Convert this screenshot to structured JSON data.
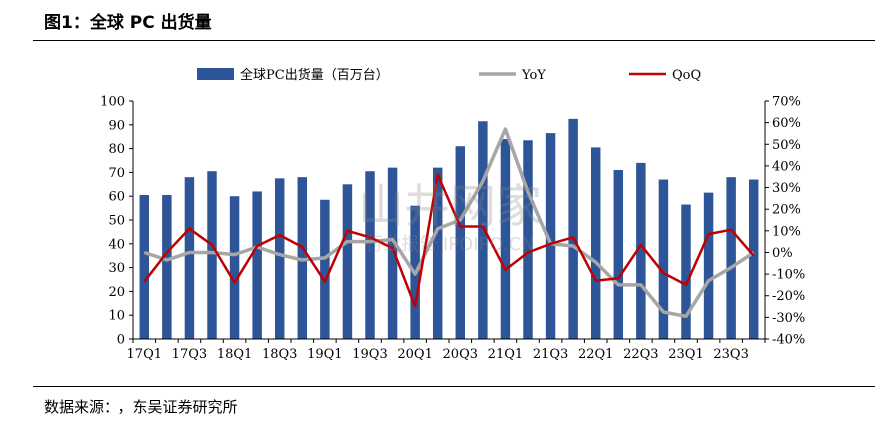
{
  "header": {
    "title": "图1：全球 PC 出货量"
  },
  "source": {
    "label": "数据来源：",
    "org": "，东吴证券研究所"
  },
  "watermark": {
    "main": "山井网家",
    "sub": "行业报告 IPOIPO.CN"
  },
  "colors": {
    "bar": "#2e5597",
    "yoy": "#a6a6a6",
    "qoq": "#c00000"
  },
  "chart_data": {
    "type": "bar",
    "categories": [
      "17Q1",
      "17Q2",
      "17Q3",
      "17Q4",
      "18Q1",
      "18Q2",
      "18Q3",
      "18Q4",
      "19Q1",
      "19Q2",
      "19Q3",
      "19Q4",
      "20Q1",
      "20Q2",
      "20Q3",
      "20Q4",
      "21Q1",
      "21Q2",
      "21Q3",
      "21Q4",
      "22Q1",
      "22Q2",
      "22Q3",
      "22Q4",
      "23Q1",
      "23Q2",
      "23Q3",
      "23Q4"
    ],
    "x_tick_labels": [
      "17Q1",
      "17Q3",
      "18Q1",
      "18Q3",
      "19Q1",
      "19Q3",
      "20Q1",
      "20Q3",
      "21Q1",
      "21Q3",
      "22Q1",
      "22Q3",
      "23Q1",
      "23Q3"
    ],
    "series": [
      {
        "name": "全球PC出货量（百万台）",
        "type": "bar",
        "axis": "left",
        "values": [
          60.5,
          60.5,
          68,
          70.5,
          60,
          62,
          67.5,
          68,
          58.5,
          65,
          70.5,
          72,
          56,
          72,
          81,
          91.5,
          84,
          83.5,
          86.5,
          92.5,
          80.5,
          71,
          74,
          67,
          56.5,
          61.5,
          68,
          67
        ]
      },
      {
        "name": "YoY",
        "type": "line",
        "axis": "right",
        "values": [
          0,
          -3.5,
          0,
          0,
          -1,
          2.5,
          -1,
          -3.5,
          -2.5,
          5,
          5,
          6,
          -10,
          11,
          15,
          33,
          57,
          28,
          4,
          3,
          -4.5,
          -15,
          -15,
          -27.5,
          -29.5,
          -13,
          -7,
          0
        ]
      },
      {
        "name": "QoQ",
        "type": "line",
        "axis": "right",
        "values": [
          -13.5,
          0,
          11,
          3.5,
          -14,
          3,
          8,
          2.5,
          -13.5,
          10,
          7,
          2,
          -25,
          36,
          12,
          12,
          -8,
          0,
          4,
          7,
          -13,
          -12,
          3.5,
          -9.5,
          -15,
          8.5,
          10.5,
          -1.5
        ]
      }
    ],
    "ylim_left": [
      0,
      100
    ],
    "yticks_left": [
      0,
      10,
      20,
      30,
      40,
      50,
      60,
      70,
      80,
      90,
      100
    ],
    "ylim_right": [
      -40,
      70
    ],
    "yticks_right": [
      "-40%",
      "-30%",
      "-20%",
      "-10%",
      "0%",
      "10%",
      "20%",
      "30%",
      "40%",
      "50%",
      "60%",
      "70%"
    ],
    "legend_position": "top",
    "grid": false
  }
}
